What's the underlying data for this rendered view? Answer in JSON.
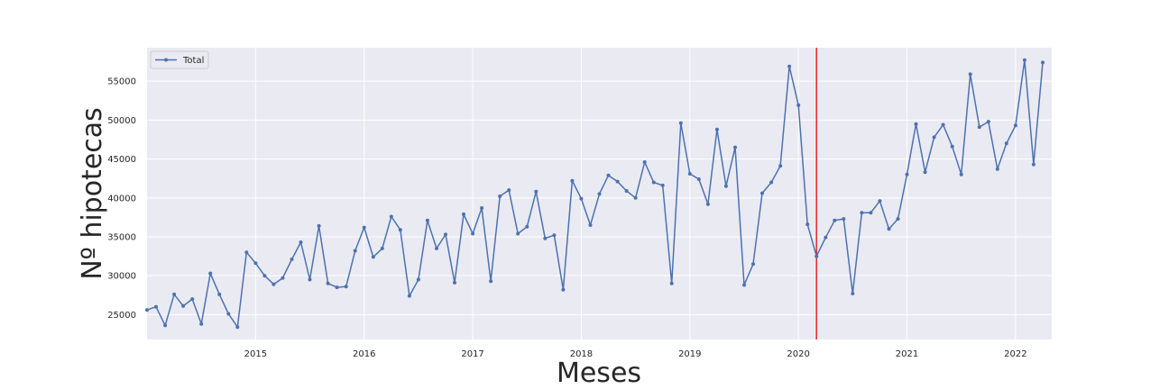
{
  "chart_data": {
    "type": "line",
    "xlabel": "Meses",
    "ylabel": "Nº hipotecas",
    "x_start": "2014-01",
    "x_end": "2022-05",
    "xlim": [
      "2014-01",
      "2022-05"
    ],
    "ylim": [
      21800,
      59300
    ],
    "x_ticks": [
      {
        "date": "2015-01",
        "label": "2015"
      },
      {
        "date": "2016-01",
        "label": "2016"
      },
      {
        "date": "2017-01",
        "label": "2017"
      },
      {
        "date": "2018-01",
        "label": "2018"
      },
      {
        "date": "2019-01",
        "label": "2019"
      },
      {
        "date": "2020-01",
        "label": "2020"
      },
      {
        "date": "2021-01",
        "label": "2021"
      },
      {
        "date": "2022-01",
        "label": "2022"
      }
    ],
    "y_ticks": [
      25000,
      30000,
      35000,
      40000,
      45000,
      50000,
      55000
    ],
    "grid": true,
    "legend_position": "top-left",
    "vertical_line": {
      "date": "2020-03",
      "color": "#e8292a"
    },
    "series": [
      {
        "name": "Total",
        "color": "#4c72b0",
        "values": [
          25600,
          26000,
          23600,
          27600,
          26100,
          27000,
          23800,
          30300,
          27600,
          25100,
          23400,
          33000,
          31600,
          30000,
          28900,
          29700,
          32100,
          34300,
          29500,
          36400,
          29000,
          28500,
          28600,
          33200,
          36200,
          32400,
          33500,
          37600,
          35900,
          27400,
          29500,
          37100,
          33500,
          35300,
          29100,
          37900,
          35400,
          38700,
          29300,
          40200,
          41000,
          35400,
          36300,
          40800,
          34800,
          35200,
          28200,
          42200,
          39900,
          36500,
          40500,
          42900,
          42100,
          40900,
          40000,
          44600,
          42000,
          41600,
          29000,
          49600,
          43100,
          42400,
          39200,
          48800,
          41500,
          46500,
          28800,
          31500,
          40600,
          42000,
          44100,
          56900,
          51900,
          36600,
          32500,
          34900,
          37100,
          37300,
          27700,
          38100,
          38100,
          39600,
          36000,
          37300,
          43000,
          49500,
          43300,
          47800,
          49400,
          46600,
          43000,
          55900,
          49100,
          49800,
          43700,
          47000,
          49300,
          57700,
          44300,
          57400
        ]
      }
    ]
  }
}
